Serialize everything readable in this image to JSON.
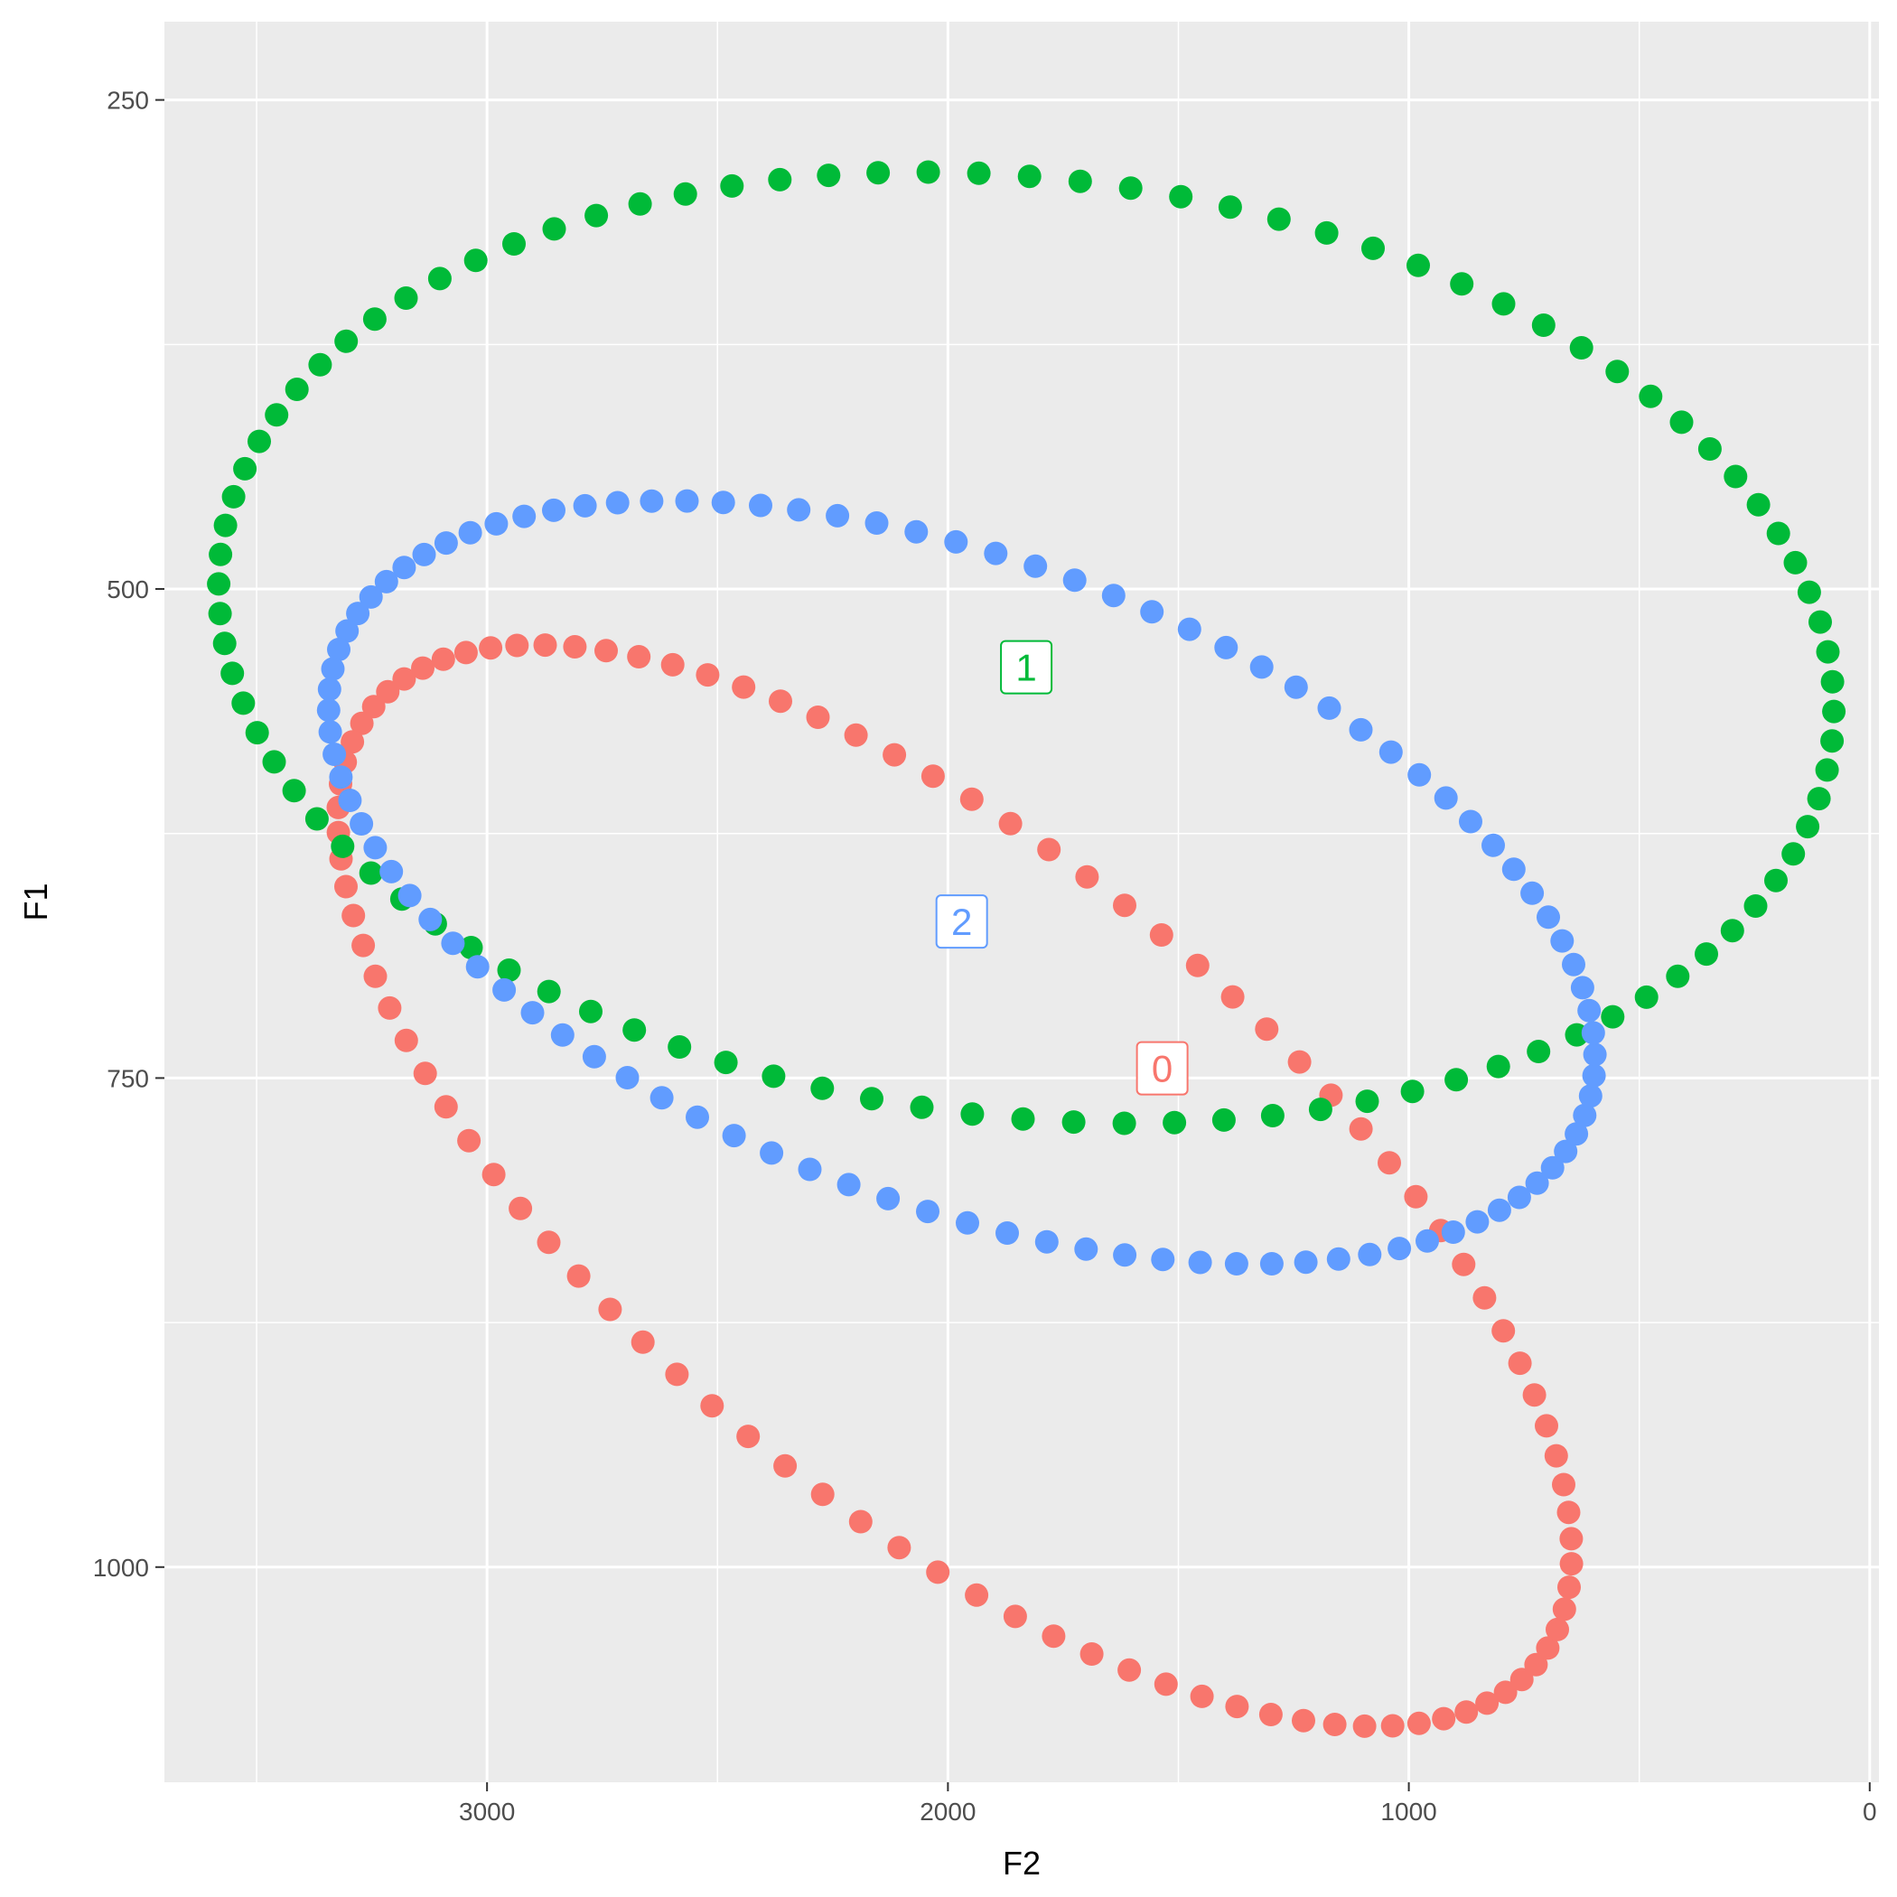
{
  "chart_data": {
    "type": "scatter",
    "title": "",
    "xlabel": "F2",
    "ylabel": "F1",
    "x_reversed": true,
    "y_reversed": true,
    "xlim": [
      3700,
      -20
    ],
    "ylim": [
      210,
      1110
    ],
    "x_ticks": [
      3000,
      2000,
      1000,
      0
    ],
    "x_tick_labels": [
      "3000",
      "2000",
      "1000",
      "0"
    ],
    "y_ticks": [
      250,
      500,
      750,
      1000
    ],
    "y_tick_labels": [
      "250",
      "500",
      "750",
      "1000"
    ],
    "grid": true,
    "legend": "none",
    "series": [
      {
        "name": "0",
        "color": "#F8766D",
        "ellipse": {
          "cx": 1985,
          "cy": 805,
          "rx": 705,
          "ry": 385,
          "angle_deg": 50.5
        },
        "n_points": 100
      },
      {
        "name": "1",
        "color": "#00BA38",
        "ellipse": {
          "cx": 1830,
          "cy": 530,
          "rx": 1760,
          "ry": 240,
          "angle_deg": -6.6
        },
        "n_points": 100
      },
      {
        "name": "2",
        "color": "#619CFF",
        "ellipse": {
          "cx": 1970,
          "cy": 650,
          "rx": 700,
          "ry": 340,
          "angle_deg": 69.5
        },
        "n_points": 100
      }
    ],
    "labels": [
      {
        "text": "1",
        "x": 1830,
        "y": 540,
        "color": "#00BA38"
      },
      {
        "text": "2",
        "x": 1970,
        "y": 670,
        "color": "#619CFF"
      },
      {
        "text": "0",
        "x": 1535,
        "y": 745,
        "color": "#F8766D"
      }
    ]
  }
}
